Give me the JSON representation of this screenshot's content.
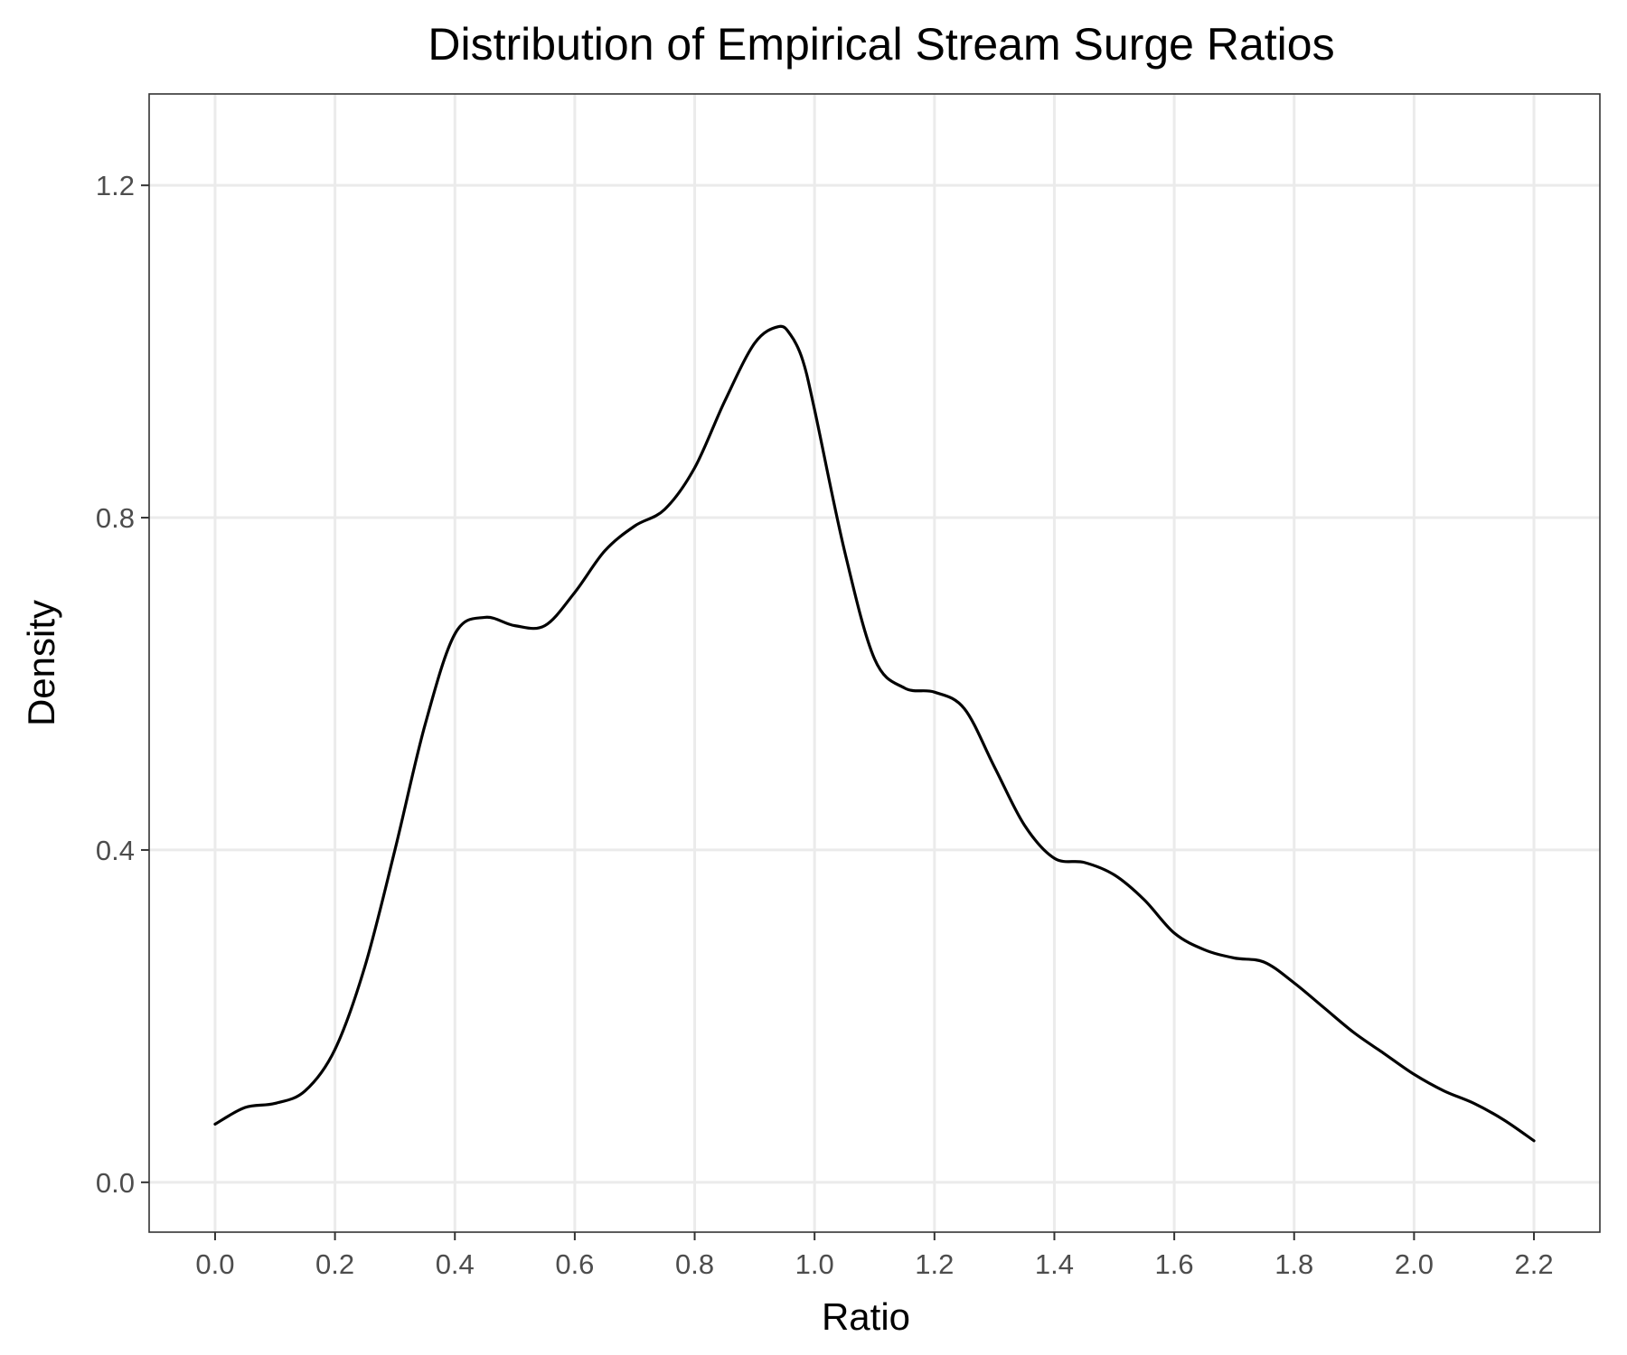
{
  "chart_data": {
    "type": "line",
    "title": "Distribution of Empirical Stream Surge Ratios",
    "xlabel": "Ratio",
    "ylabel": "Density",
    "xlim": [
      -0.11,
      2.31
    ],
    "ylim": [
      -0.06,
      1.31
    ],
    "x_ticks": [
      "0.0",
      "0.2",
      "0.4",
      "0.6",
      "0.8",
      "1.0",
      "1.2",
      "1.4",
      "1.6",
      "1.8",
      "2.0",
      "2.2"
    ],
    "x_tick_values": [
      0.0,
      0.2,
      0.4,
      0.6,
      0.8,
      1.0,
      1.2,
      1.4,
      1.6,
      1.8,
      2.0,
      2.2
    ],
    "y_ticks": [
      "0.0",
      "0.4",
      "0.8",
      "1.2"
    ],
    "y_tick_values": [
      0.0,
      0.4,
      0.8,
      1.2
    ],
    "grid": true,
    "legend": "none",
    "series": [
      {
        "color": "#000000",
        "x": [
          0.0,
          0.05,
          0.1,
          0.15,
          0.2,
          0.25,
          0.3,
          0.35,
          0.4,
          0.45,
          0.5,
          0.55,
          0.6,
          0.65,
          0.7,
          0.75,
          0.8,
          0.85,
          0.9,
          0.94,
          0.96,
          0.98,
          1.0,
          1.05,
          1.1,
          1.15,
          1.2,
          1.25,
          1.3,
          1.35,
          1.4,
          1.45,
          1.5,
          1.55,
          1.6,
          1.65,
          1.7,
          1.75,
          1.8,
          1.85,
          1.9,
          1.95,
          2.0,
          2.05,
          2.1,
          2.15,
          2.2
        ],
        "y": [
          0.07,
          0.09,
          0.095,
          0.11,
          0.16,
          0.26,
          0.4,
          0.55,
          0.66,
          0.68,
          0.67,
          0.67,
          0.71,
          0.76,
          0.79,
          0.81,
          0.86,
          0.94,
          1.01,
          1.03,
          1.02,
          0.99,
          0.93,
          0.76,
          0.63,
          0.595,
          0.59,
          0.57,
          0.5,
          0.43,
          0.39,
          0.385,
          0.37,
          0.34,
          0.3,
          0.28,
          0.27,
          0.265,
          0.24,
          0.21,
          0.18,
          0.155,
          0.13,
          0.11,
          0.095,
          0.075,
          0.05
        ]
      }
    ]
  }
}
